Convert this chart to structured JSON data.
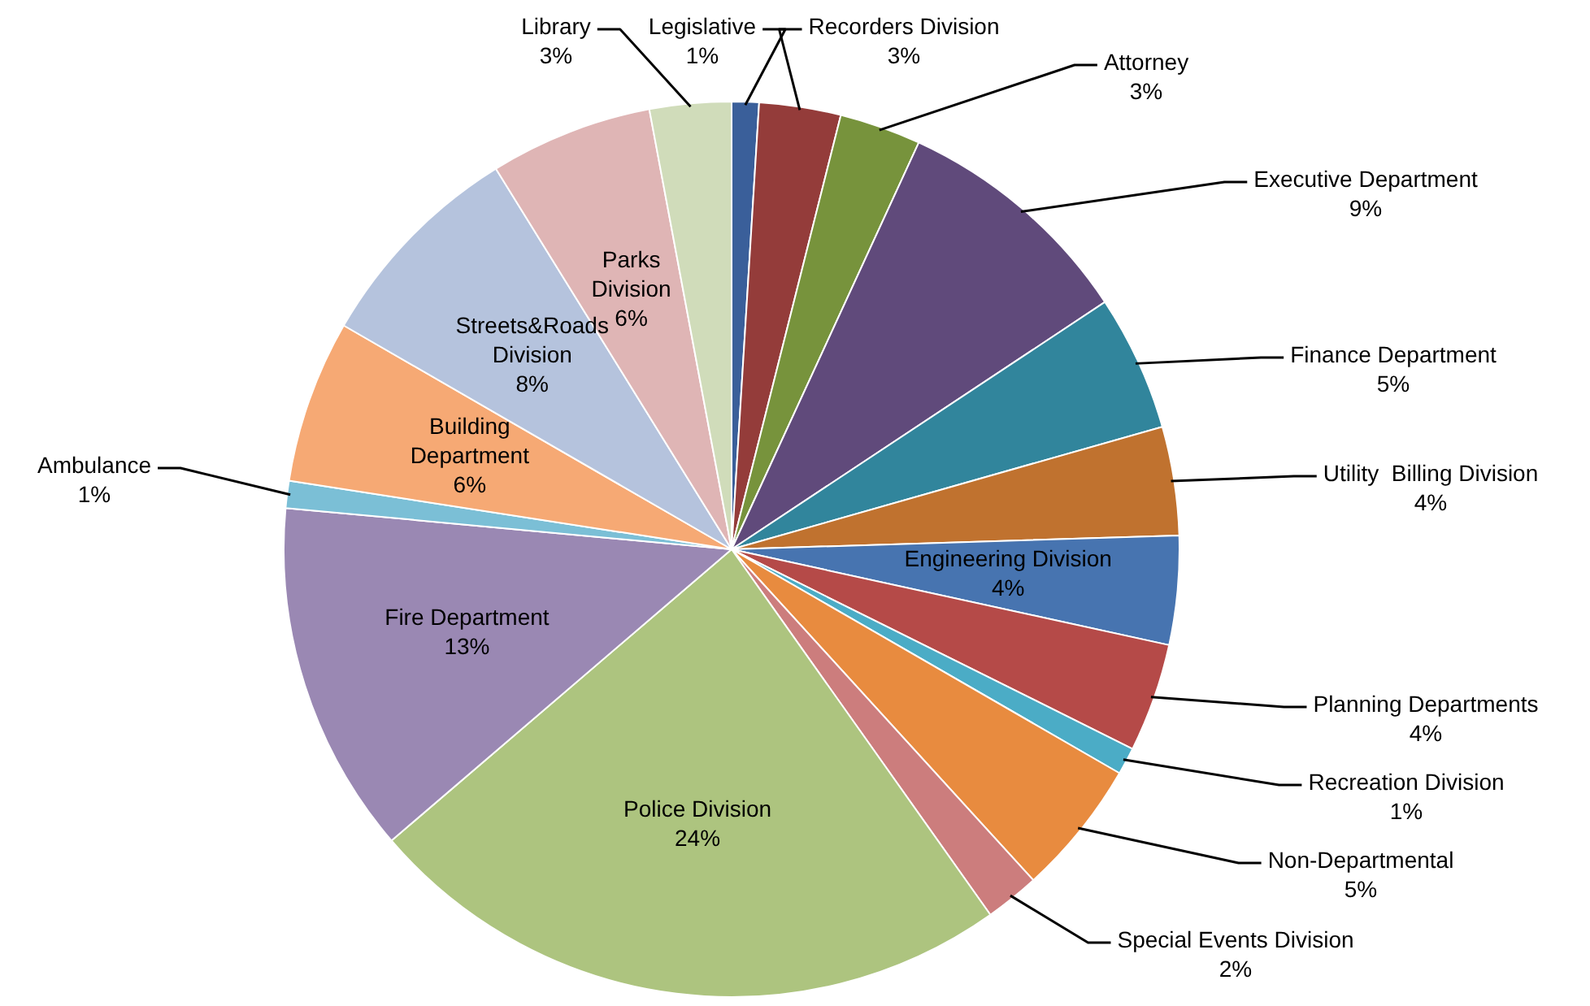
{
  "chart_data": {
    "type": "pie",
    "categories": [
      "Legislative",
      "Recorders Division",
      "Attorney",
      "Executive Department",
      "Finance Department",
      "Utility  Billing Division",
      "Engineering Division",
      "Planning Departments",
      "Recreation Division",
      "Non-Departmental",
      "Special Events Division",
      "Police Division",
      "Fire Department",
      "Ambulance",
      "Building Department",
      "Streets&Roads Division",
      "Parks Division",
      "Library"
    ],
    "values": [
      1,
      3,
      3,
      9,
      5,
      4,
      4,
      4,
      1,
      5,
      2,
      24,
      13,
      1,
      6,
      8,
      6,
      3
    ],
    "value_labels": [
      "1%",
      "3%",
      "3%",
      "9%",
      "5%",
      "4%",
      "4%",
      "4%",
      "1%",
      "5%",
      "2%",
      "24%",
      "13%",
      "1%",
      "6%",
      "8%",
      "6%",
      "3%"
    ],
    "colors": [
      "#3a5f9a",
      "#943c3a",
      "#77933c",
      "#604a7b",
      "#31859c",
      "#c0722f",
      "#4774b0",
      "#b54a48",
      "#4bacc6",
      "#e88b3f",
      "#cc7d7d",
      "#adc47f",
      "#9a88b3",
      "#7bbfd6",
      "#f6a974",
      "#b5c3dd",
      "#dfb5b5",
      "#d0dcba"
    ],
    "legend": false
  }
}
